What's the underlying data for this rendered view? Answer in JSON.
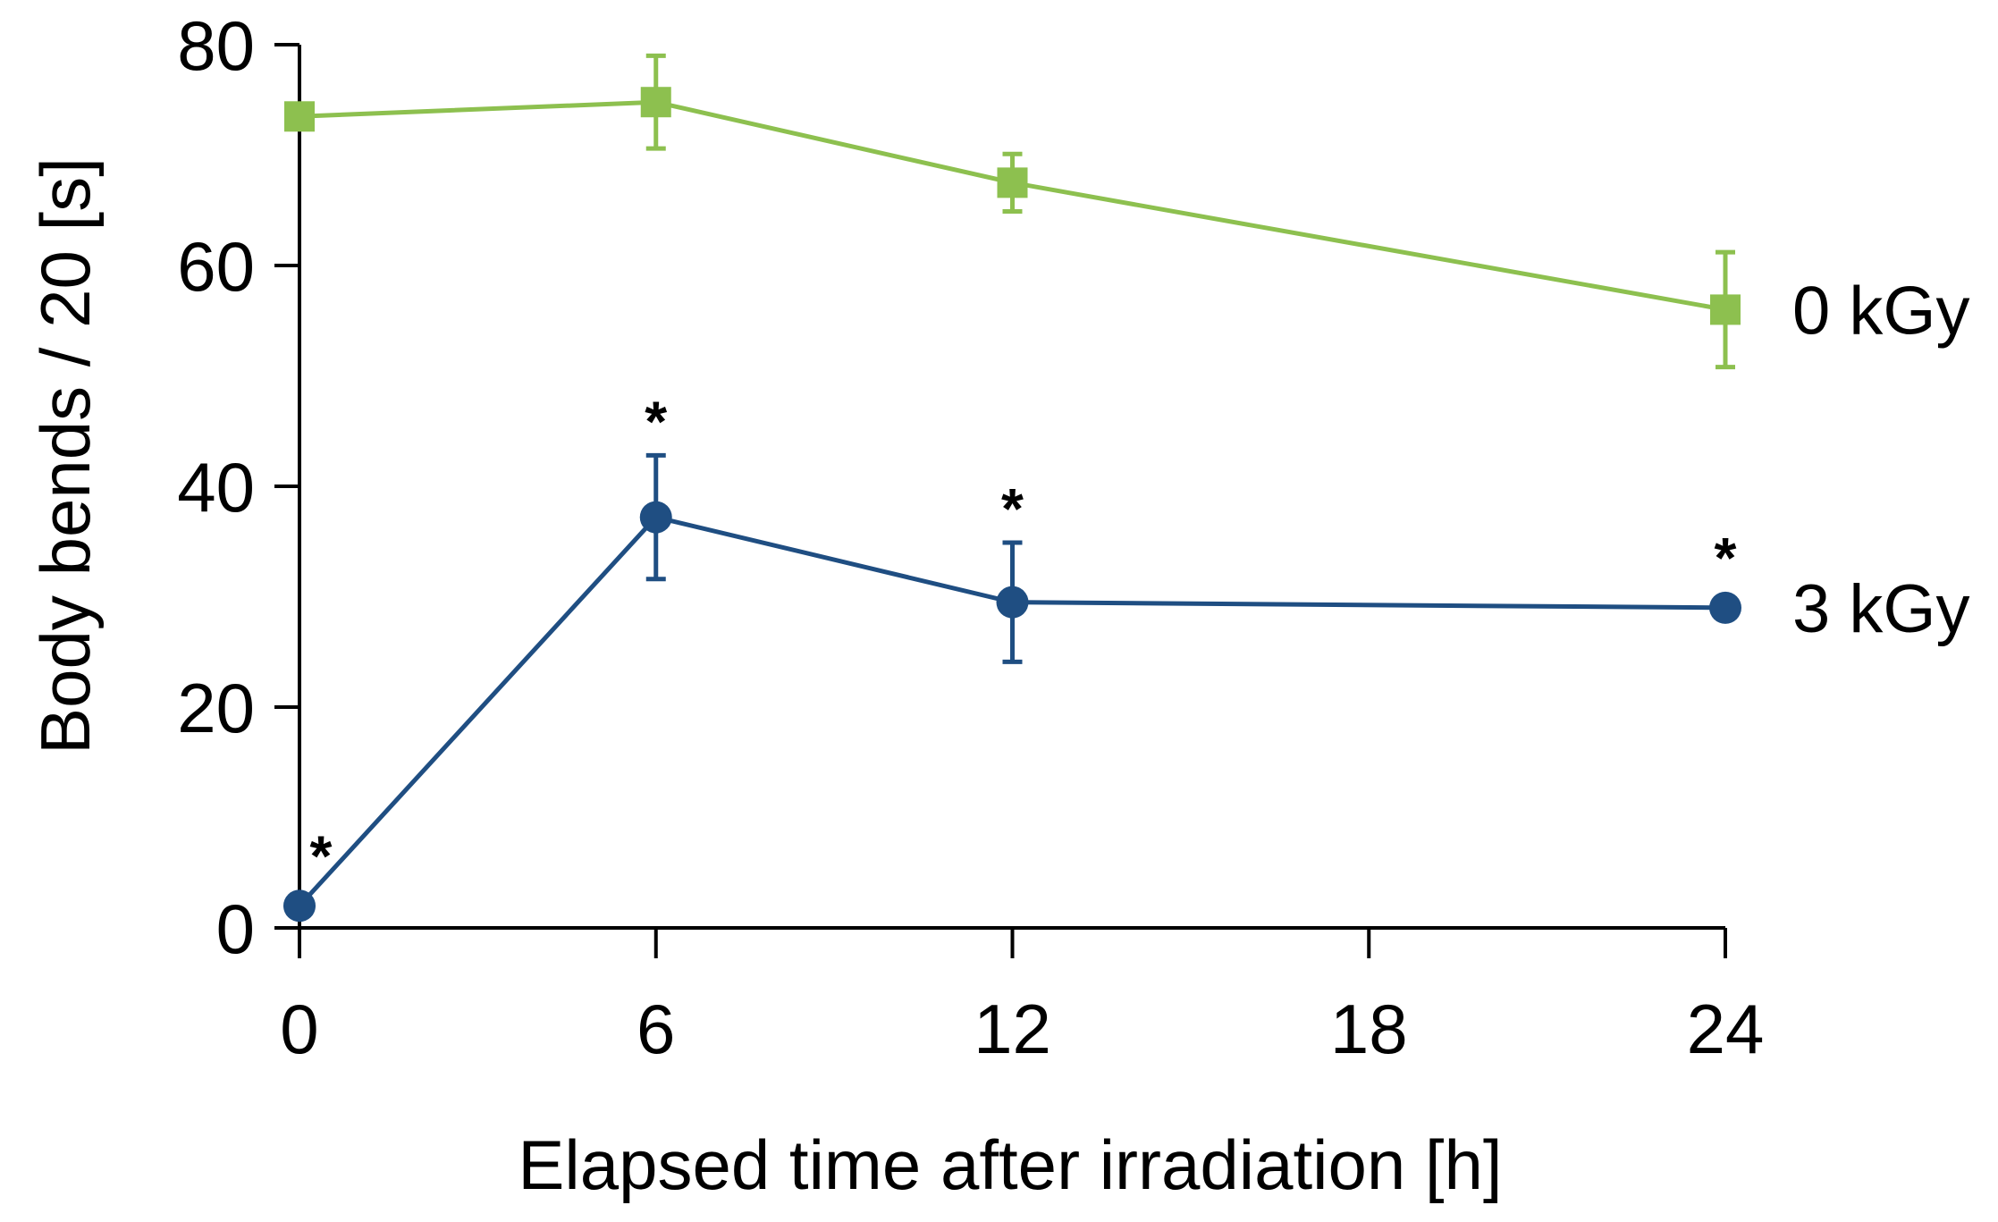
{
  "chart_data": {
    "type": "line",
    "title": "",
    "xlabel": "Elapsed time after irradiation [h]",
    "ylabel": "Body bends / 20 [s]",
    "xlim": [
      0,
      24
    ],
    "ylim": [
      0,
      80
    ],
    "x_ticks": [
      0,
      6,
      12,
      18,
      24
    ],
    "x_tick_labels": [
      "0",
      "6",
      "12",
      "18",
      "24"
    ],
    "y_ticks": [
      0,
      20,
      40,
      60,
      80
    ],
    "y_tick_labels": [
      "0",
      "20",
      "40",
      "60",
      "80"
    ],
    "grid": false,
    "legend": "direct labels at right end of each series",
    "significance_marker": "*",
    "series": [
      {
        "name": "0 kGy",
        "label": "0 kGy",
        "color": "#8dc04f",
        "marker": "square",
        "x": [
          0,
          6,
          12,
          24
        ],
        "y": [
          73.5,
          74.8,
          67.5,
          56
        ],
        "error": [
          null,
          4.2,
          2.6,
          5.2
        ],
        "significant": [
          false,
          false,
          false,
          false
        ]
      },
      {
        "name": "3 kGy",
        "label": "3 kGy",
        "color": "#1f4e82",
        "marker": "circle",
        "x": [
          0,
          6,
          12,
          24
        ],
        "y": [
          2,
          37.2,
          29.5,
          29
        ],
        "error": [
          null,
          5.6,
          5.4,
          null
        ],
        "significant": [
          true,
          true,
          true,
          true
        ]
      }
    ]
  }
}
